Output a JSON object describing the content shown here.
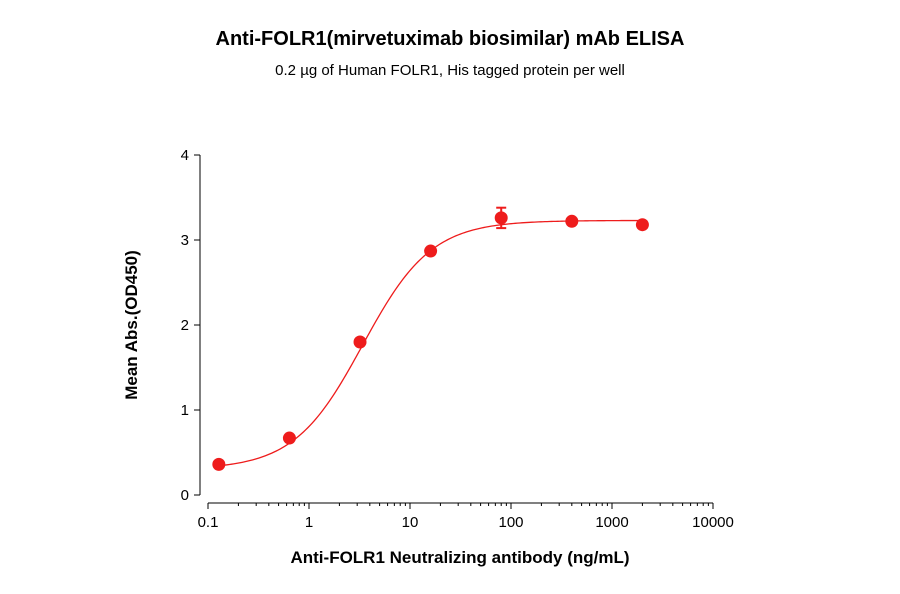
{
  "chart_data": {
    "type": "scatter",
    "title": "Anti-FOLR1(mirvetuximab biosimilar) mAb ELISA",
    "subtitle": "0.2 µg of Human FOLR1, His tagged protein per well",
    "xlabel": "Anti-FOLR1 Neutralizing antibody (ng/mL)",
    "ylabel": "Mean Abs.(OD450)",
    "x_scale": "log",
    "xlim": [
      0.1,
      10000
    ],
    "ylim": [
      0,
      4
    ],
    "x_ticks": [
      "0.1",
      "1",
      "10",
      "100",
      "1000",
      "10000"
    ],
    "y_ticks": [
      "0",
      "1",
      "2",
      "3",
      "4"
    ],
    "grid": false,
    "color": "#ee1c1c",
    "series": [
      {
        "x": [
          0.128,
          0.64,
          3.2,
          16,
          80,
          400,
          2000
        ],
        "y": [
          0.36,
          0.67,
          1.8,
          2.87,
          3.26,
          3.22,
          3.18
        ],
        "error": [
          0.01,
          0.01,
          0.02,
          0.02,
          0.12,
          0.02,
          0.01
        ]
      }
    ],
    "fit": {
      "type": "4PL",
      "bottom": 0.3,
      "top": 3.23,
      "ec50": 3.4,
      "hill": 1.28
    }
  }
}
